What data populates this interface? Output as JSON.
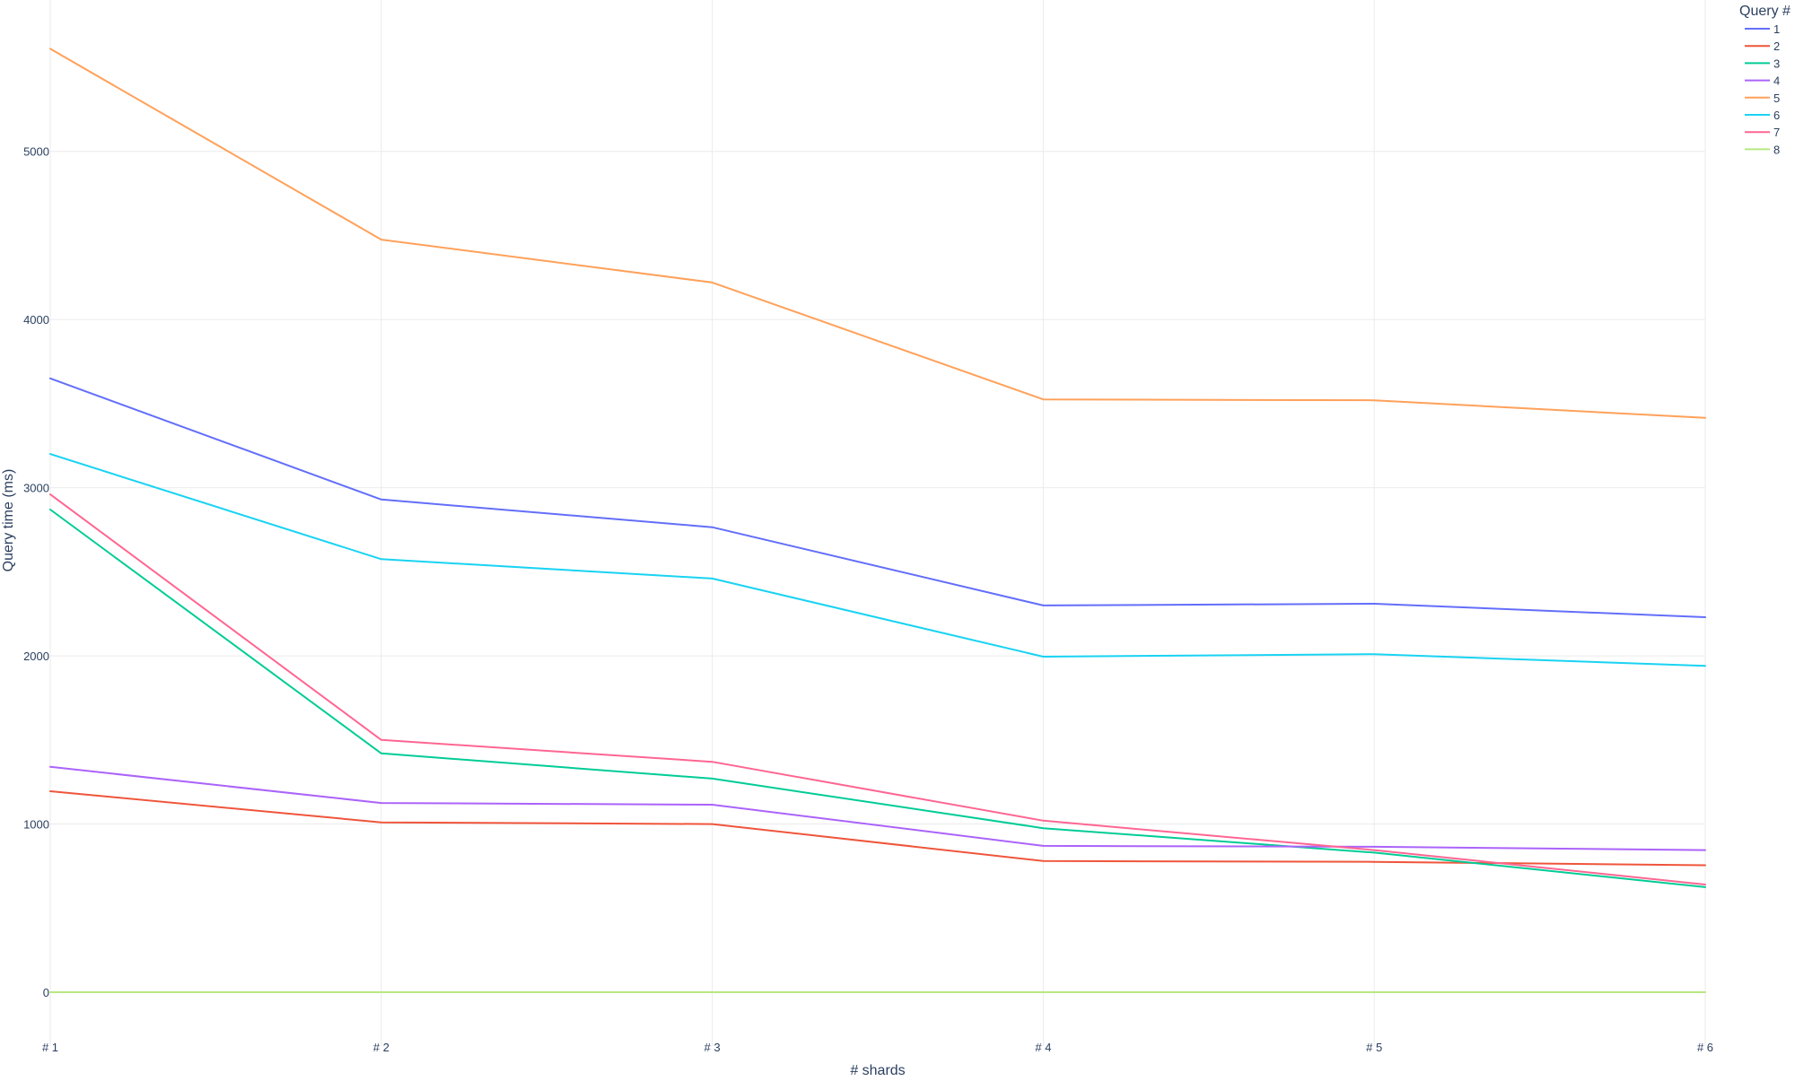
{
  "chart_data": {
    "type": "line",
    "title": "",
    "xlabel": "# shards",
    "ylabel": "Query time (ms)",
    "categories": [
      "# 1",
      "# 2",
      "# 3",
      "# 4",
      "# 5",
      "# 6"
    ],
    "ylim": [
      -320,
      5900
    ],
    "yticks": [
      0,
      1000,
      2000,
      3000,
      4000,
      5000
    ],
    "grid": true,
    "legend": {
      "title": "Query #",
      "placement": "top-right"
    },
    "series": [
      {
        "name": "1",
        "color": "#636efa",
        "values": [
          3650,
          2930,
          2765,
          2300,
          2310,
          2230
        ]
      },
      {
        "name": "2",
        "color": "#ef553b",
        "values": [
          1195,
          1010,
          1000,
          780,
          775,
          755
        ]
      },
      {
        "name": "3",
        "color": "#00cc96",
        "values": [
          2870,
          1420,
          1270,
          975,
          830,
          625
        ]
      },
      {
        "name": "4",
        "color": "#ab63fa",
        "values": [
          1340,
          1125,
          1115,
          870,
          865,
          845
        ]
      },
      {
        "name": "5",
        "color": "#ffa15a",
        "values": [
          5610,
          4475,
          4220,
          3525,
          3520,
          3415
        ]
      },
      {
        "name": "6",
        "color": "#19d3f3",
        "values": [
          3200,
          2575,
          2460,
          1995,
          2010,
          1940
        ]
      },
      {
        "name": "7",
        "color": "#ff6692",
        "values": [
          2960,
          1500,
          1370,
          1020,
          845,
          640
        ]
      },
      {
        "name": "8",
        "color": "#b6e880",
        "values": [
          0,
          0,
          0,
          0,
          0,
          0
        ]
      }
    ]
  }
}
